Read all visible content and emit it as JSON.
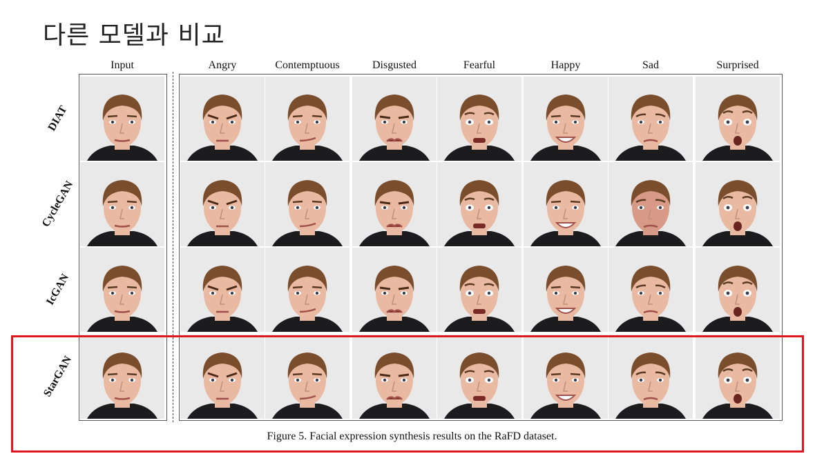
{
  "slide": {
    "title": "다른 모델과 비교"
  },
  "figure": {
    "columns": [
      "Input",
      "Angry",
      "Contemptuous",
      "Disgusted",
      "Fearful",
      "Happy",
      "Sad",
      "Surprised"
    ],
    "rows": [
      "DIAT",
      "CycleGAN",
      "IcGAN",
      "StarGAN"
    ],
    "caption": "Figure 5. Facial expression synthesis results on the RaFD dataset.",
    "highlighted_row": "StarGAN"
  },
  "colors": {
    "highlight": "#e0161f",
    "frame": "#555555",
    "background": "#e9e9ea",
    "hair": "#7a4e2c",
    "skin": "#e9b9a2"
  }
}
